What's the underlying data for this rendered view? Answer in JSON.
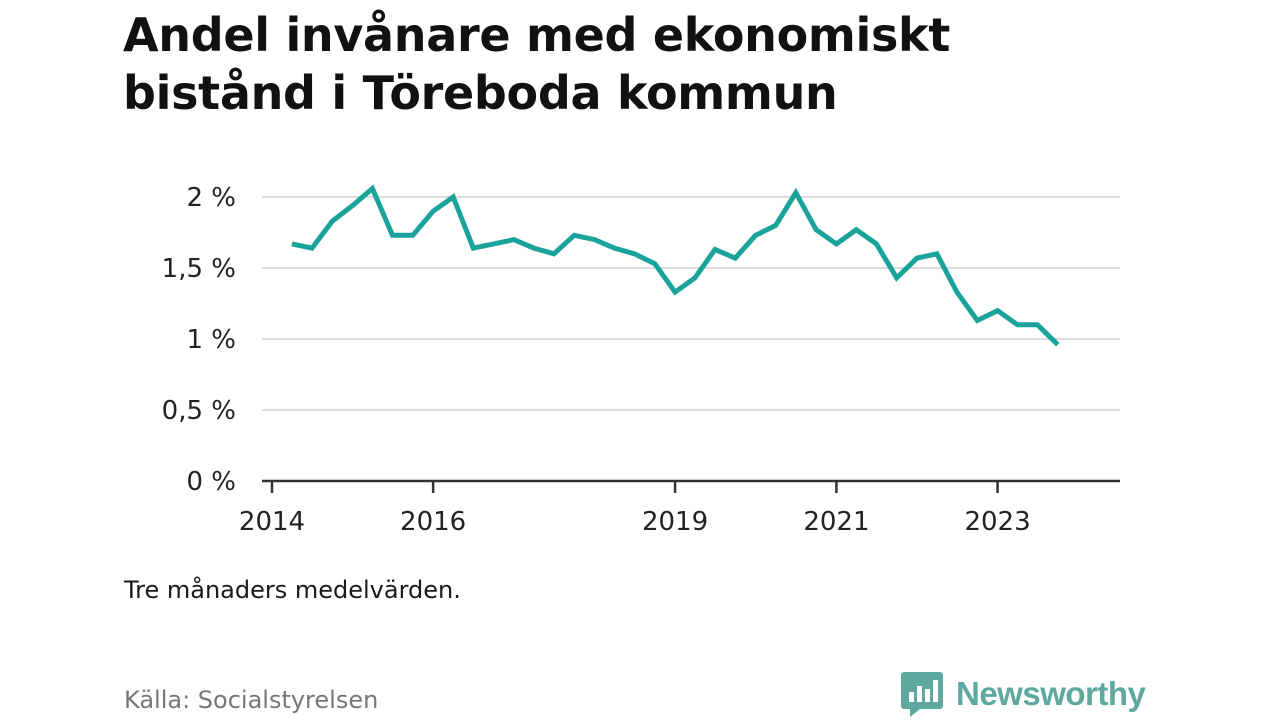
{
  "title": "Andel invånare med ekonomiskt bistånd i Töreboda kommun",
  "note": "Tre månaders medelvärden.",
  "source": "Källa: Socialstyrelsen",
  "brand": {
    "name": "Newsworthy",
    "icon": "newsworthy-logo-icon",
    "color": "#5fa89f"
  },
  "chart_data": {
    "type": "line",
    "title": "Andel invånare med ekonomiskt bistånd i Töreboda kommun",
    "xlabel": "",
    "ylabel": "",
    "ylim": [
      0,
      2
    ],
    "xlim": [
      "2014-01-01",
      "2024-03-31"
    ],
    "yticks": [
      {
        "value": 0,
        "label": "0 %"
      },
      {
        "value": 0.5,
        "label": "0,5 %"
      },
      {
        "value": 1,
        "label": "1 %"
      },
      {
        "value": 1.5,
        "label": "1,5 %"
      },
      {
        "value": 2,
        "label": "2 %"
      }
    ],
    "xticks": [
      {
        "value": "2014-01-01",
        "label": "2014"
      },
      {
        "value": "2016-01-01",
        "label": "2016"
      },
      {
        "value": "2019-01-01",
        "label": "2019"
      },
      {
        "value": "2021-01-01",
        "label": "2021"
      },
      {
        "value": "2023-01-01",
        "label": "2023"
      }
    ],
    "grid": true,
    "line_color": "#1aa39a",
    "series": [
      {
        "x": [
          "2014-04",
          "2014-07",
          "2014-10",
          "2015-01",
          "2015-04",
          "2015-07",
          "2015-10",
          "2016-01",
          "2016-04",
          "2016-07",
          "2016-10",
          "2017-01",
          "2017-04",
          "2017-07",
          "2017-10",
          "2018-01",
          "2018-04",
          "2018-07",
          "2018-10",
          "2019-01",
          "2019-04",
          "2019-07",
          "2019-10",
          "2020-01",
          "2020-04",
          "2020-07",
          "2020-10",
          "2021-01",
          "2021-04",
          "2021-07",
          "2021-10",
          "2022-01",
          "2022-04",
          "2022-07",
          "2022-10",
          "2023-01",
          "2023-04",
          "2023-07",
          "2023-10"
        ],
        "values": [
          1.67,
          1.64,
          1.83,
          1.94,
          2.06,
          1.73,
          1.73,
          1.9,
          2.0,
          1.64,
          1.67,
          1.7,
          1.64,
          1.6,
          1.73,
          1.7,
          1.64,
          1.6,
          1.53,
          1.33,
          1.43,
          1.63,
          1.57,
          1.73,
          1.8,
          2.03,
          1.77,
          1.67,
          1.77,
          1.67,
          1.43,
          1.57,
          1.6,
          1.33,
          1.13,
          1.2,
          1.1,
          1.1,
          0.96
        ]
      }
    ]
  }
}
